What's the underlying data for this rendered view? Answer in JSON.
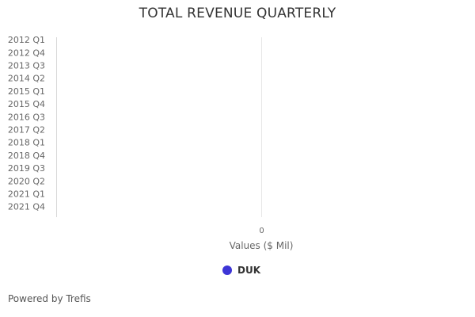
{
  "chart_data": {
    "type": "bar",
    "orientation": "horizontal",
    "title": "TOTAL REVENUE QUARTERLY",
    "categories": [
      "2012 Q1",
      "2012 Q4",
      "2013 Q3",
      "2014 Q2",
      "2015 Q1",
      "2015 Q4",
      "2016 Q3",
      "2017 Q2",
      "2018 Q1",
      "2018 Q4",
      "2019 Q3",
      "2020 Q2",
      "2021 Q1",
      "2021 Q4"
    ],
    "series": [
      {
        "name": "DUK",
        "color": "#3d35d6",
        "values": [
          0,
          0,
          0,
          0,
          0,
          0,
          0,
          0,
          0,
          0,
          0,
          0,
          0,
          0
        ]
      }
    ],
    "xlabel": "Values ($ Mil)",
    "ylabel": "",
    "x_ticks": [
      "0"
    ],
    "legend_position": "bottom-center",
    "grid": true
  },
  "credits": "Powered by Trefis"
}
